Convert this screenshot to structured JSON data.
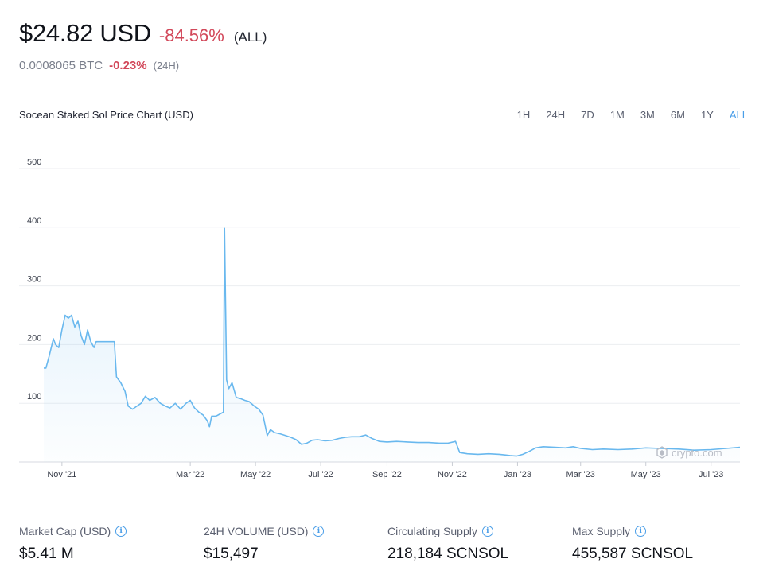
{
  "header": {
    "price": "$24.82 USD",
    "change": "-84.56%",
    "range_tag": "(ALL)",
    "btc_value": "0.0008065 BTC",
    "btc_change": "-0.23%",
    "btc_period": "(24H)"
  },
  "chart_title": "Socean Staked Sol Price Chart (USD)",
  "ranges": [
    "1H",
    "24H",
    "7D",
    "1M",
    "3M",
    "6M",
    "1Y",
    "ALL"
  ],
  "active_range": "ALL",
  "watermark": "crypto.com",
  "stats": [
    {
      "label": "Market Cap (USD)",
      "value": "$5.41 M"
    },
    {
      "label": "24H VOLUME (USD)",
      "value": "$15,497"
    },
    {
      "label": "Circulating Supply",
      "value": "218,184 SCNSOL"
    },
    {
      "label": "Max Supply",
      "value": "455,587 SCNSOL"
    }
  ],
  "colors": {
    "line": "#69b8ee",
    "negative": "#d2485a",
    "accent": "#4a9ee8"
  },
  "chart_data": {
    "type": "area",
    "title": "Socean Staked Sol Price Chart (USD)",
    "ylim": [
      0,
      500
    ],
    "yticks": [
      100,
      200,
      300,
      400,
      500
    ],
    "xlim": [
      "2021-10-15",
      "2023-07-28"
    ],
    "xticks": [
      {
        "label": "Nov '21",
        "date": "2021-11-01"
      },
      {
        "label": "Mar '22",
        "date": "2022-03-01"
      },
      {
        "label": "May '22",
        "date": "2022-05-01"
      },
      {
        "label": "Jul '22",
        "date": "2022-07-01"
      },
      {
        "label": "Sep '22",
        "date": "2022-09-01"
      },
      {
        "label": "Nov '22",
        "date": "2022-11-01"
      },
      {
        "label": "Jan '23",
        "date": "2023-01-01"
      },
      {
        "label": "Mar '23",
        "date": "2023-03-01"
      },
      {
        "label": "May '23",
        "date": "2023-05-01"
      },
      {
        "label": "Jul '23",
        "date": "2023-07-01"
      }
    ],
    "grid": true,
    "series": [
      {
        "points": [
          [
            "2021-10-15",
            160
          ],
          [
            "2021-10-17",
            160
          ],
          [
            "2021-10-20",
            180
          ],
          [
            "2021-10-24",
            210
          ],
          [
            "2021-10-26",
            200
          ],
          [
            "2021-10-29",
            195
          ],
          [
            "2021-11-01",
            225
          ],
          [
            "2021-11-04",
            250
          ],
          [
            "2021-11-07",
            245
          ],
          [
            "2021-11-10",
            250
          ],
          [
            "2021-11-13",
            230
          ],
          [
            "2021-11-16",
            240
          ],
          [
            "2021-11-19",
            215
          ],
          [
            "2021-11-22",
            200
          ],
          [
            "2021-11-25",
            225
          ],
          [
            "2021-11-28",
            205
          ],
          [
            "2021-12-01",
            195
          ],
          [
            "2021-12-03",
            205
          ],
          [
            "2021-12-20",
            205
          ],
          [
            "2021-12-22",
            145
          ],
          [
            "2021-12-26",
            135
          ],
          [
            "2021-12-30",
            120
          ],
          [
            "2022-01-02",
            95
          ],
          [
            "2022-01-06",
            90
          ],
          [
            "2022-01-10",
            95
          ],
          [
            "2022-01-14",
            100
          ],
          [
            "2022-01-18",
            112
          ],
          [
            "2022-01-22",
            105
          ],
          [
            "2022-01-27",
            110
          ],
          [
            "2022-02-01",
            100
          ],
          [
            "2022-02-06",
            95
          ],
          [
            "2022-02-10",
            92
          ],
          [
            "2022-02-15",
            100
          ],
          [
            "2022-02-20",
            90
          ],
          [
            "2022-02-25",
            100
          ],
          [
            "2022-03-01",
            105
          ],
          [
            "2022-03-05",
            92
          ],
          [
            "2022-03-09",
            85
          ],
          [
            "2022-03-13",
            80
          ],
          [
            "2022-03-17",
            70
          ],
          [
            "2022-03-19",
            60
          ],
          [
            "2022-03-21",
            78
          ],
          [
            "2022-03-25",
            78
          ],
          [
            "2022-03-29",
            82
          ],
          [
            "2022-04-01",
            85
          ],
          [
            "2022-04-02",
            398
          ],
          [
            "2022-04-04",
            140
          ],
          [
            "2022-04-06",
            125
          ],
          [
            "2022-04-09",
            135
          ],
          [
            "2022-04-13",
            110
          ],
          [
            "2022-04-17",
            108
          ],
          [
            "2022-04-21",
            105
          ],
          [
            "2022-04-25",
            103
          ],
          [
            "2022-04-30",
            95
          ],
          [
            "2022-05-04",
            90
          ],
          [
            "2022-05-08",
            80
          ],
          [
            "2022-05-12",
            45
          ],
          [
            "2022-05-15",
            55
          ],
          [
            "2022-05-19",
            50
          ],
          [
            "2022-05-24",
            48
          ],
          [
            "2022-05-29",
            45
          ],
          [
            "2022-06-03",
            42
          ],
          [
            "2022-06-08",
            38
          ],
          [
            "2022-06-13",
            30
          ],
          [
            "2022-06-18",
            32
          ],
          [
            "2022-06-23",
            37
          ],
          [
            "2022-06-28",
            38
          ],
          [
            "2022-07-05",
            36
          ],
          [
            "2022-07-12",
            37
          ],
          [
            "2022-07-18",
            40
          ],
          [
            "2022-07-24",
            42
          ],
          [
            "2022-07-30",
            43
          ],
          [
            "2022-08-06",
            43
          ],
          [
            "2022-08-12",
            46
          ],
          [
            "2022-08-18",
            40
          ],
          [
            "2022-08-25",
            35
          ],
          [
            "2022-09-01",
            34
          ],
          [
            "2022-09-10",
            35
          ],
          [
            "2022-09-20",
            34
          ],
          [
            "2022-09-30",
            33
          ],
          [
            "2022-10-10",
            33
          ],
          [
            "2022-10-20",
            32
          ],
          [
            "2022-10-28",
            32
          ],
          [
            "2022-11-04",
            35
          ],
          [
            "2022-11-08",
            16
          ],
          [
            "2022-11-15",
            14
          ],
          [
            "2022-11-25",
            13
          ],
          [
            "2022-12-05",
            14
          ],
          [
            "2022-12-15",
            13
          ],
          [
            "2022-12-25",
            11
          ],
          [
            "2022-12-31",
            10
          ],
          [
            "2023-01-06",
            13
          ],
          [
            "2023-01-12",
            18
          ],
          [
            "2023-01-18",
            24
          ],
          [
            "2023-01-25",
            26
          ],
          [
            "2023-02-05",
            25
          ],
          [
            "2023-02-15",
            24
          ],
          [
            "2023-02-22",
            26
          ],
          [
            "2023-03-01",
            23
          ],
          [
            "2023-03-12",
            21
          ],
          [
            "2023-03-22",
            22
          ],
          [
            "2023-04-05",
            21
          ],
          [
            "2023-04-18",
            22
          ],
          [
            "2023-05-01",
            24
          ],
          [
            "2023-05-15",
            23
          ],
          [
            "2023-06-01",
            22
          ],
          [
            "2023-06-15",
            20
          ],
          [
            "2023-07-01",
            21
          ],
          [
            "2023-07-15",
            23
          ],
          [
            "2023-07-28",
            25
          ]
        ]
      }
    ]
  }
}
